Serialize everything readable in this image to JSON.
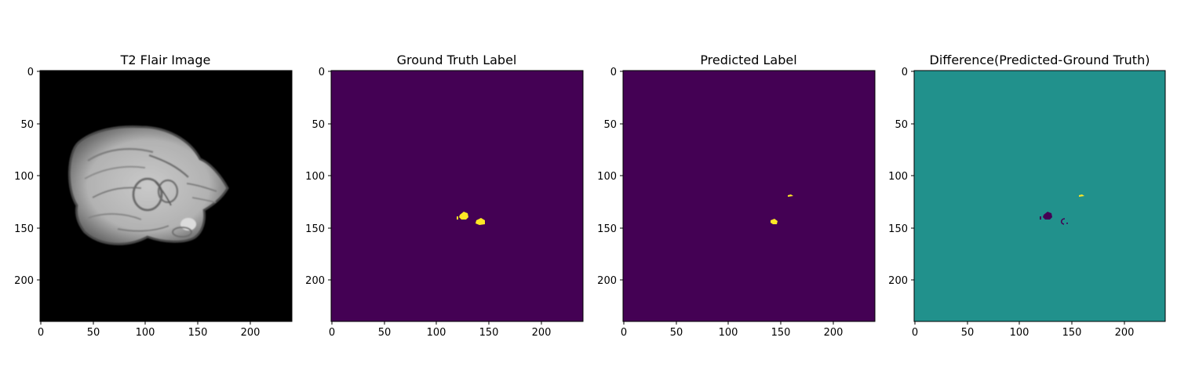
{
  "figure": {
    "panels": [
      {
        "title": "T2 Flair Image",
        "kind": "mri",
        "background": "#000000",
        "xticks": [
          "0",
          "50",
          "100",
          "150",
          "200"
        ],
        "yticks": [
          "0",
          "50",
          "100",
          "150",
          "200"
        ]
      },
      {
        "title": "Ground Truth Label",
        "kind": "ground-truth",
        "background": "#440154",
        "xticks": [
          "0",
          "50",
          "100",
          "150",
          "200"
        ],
        "yticks": [
          "0",
          "50",
          "100",
          "150",
          "200"
        ]
      },
      {
        "title": "Predicted Label",
        "kind": "prediction",
        "background": "#440154",
        "xticks": [
          "0",
          "50",
          "100",
          "150",
          "200"
        ],
        "yticks": [
          "0",
          "50",
          "100",
          "150",
          "200"
        ]
      },
      {
        "title": "Difference(Predicted-Ground Truth)",
        "kind": "difference",
        "background": "#21918c",
        "xticks": [
          "0",
          "50",
          "100",
          "150",
          "200"
        ],
        "yticks": [
          "0",
          "50",
          "100",
          "150",
          "200"
        ]
      }
    ],
    "colors": {
      "viridis_low": "#440154",
      "viridis_mid": "#21918c",
      "viridis_high": "#fde725",
      "mri_background": "#000000"
    }
  }
}
